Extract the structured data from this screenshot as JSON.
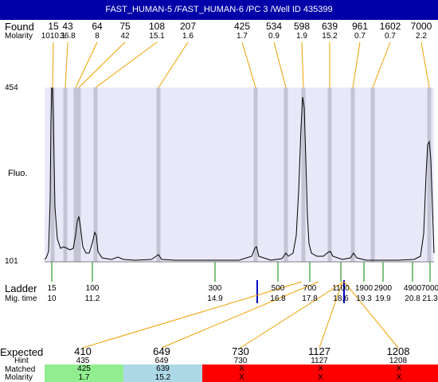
{
  "title": "FAST_HUMAN-5 /FAST_HUMAN-6 /PC 3 /Well ID 435399",
  "labels": {
    "found": "Found",
    "molarity": "Molarity",
    "fluo": "Fluo.",
    "ladder": "Ladder",
    "mig_time": "Mig. time",
    "expected": "Expected",
    "hint": "Hint",
    "matched": "Matched",
    "molarity_row": "Molarity"
  },
  "y_axis": {
    "max": "454",
    "min": "101"
  },
  "found_peaks": [
    {
      "size": "15",
      "molarity": "1010.1"
    },
    {
      "size": "43",
      "molarity": "36.8"
    },
    {
      "size": "64",
      "molarity": "8"
    },
    {
      "size": "75",
      "molarity": "42"
    },
    {
      "size": "108",
      "molarity": "15.1"
    },
    {
      "size": "207",
      "molarity": "1.6"
    },
    {
      "size": "425",
      "molarity": "1.7"
    },
    {
      "size": "534",
      "molarity": "0.9"
    },
    {
      "size": "598",
      "molarity": "1.9"
    },
    {
      "size": "639",
      "molarity": "15.2"
    },
    {
      "size": "961",
      "molarity": "0.7"
    },
    {
      "size": "1602",
      "molarity": "0.7"
    },
    {
      "size": "7000",
      "molarity": "2.2"
    }
  ],
  "ladder": [
    {
      "size": "15",
      "time": "10"
    },
    {
      "size": "100",
      "time": "11.2"
    },
    {
      "size": "300",
      "time": "14.9"
    },
    {
      "size": "500",
      "time": "16.8"
    },
    {
      "size": "700",
      "time": "17.8"
    },
    {
      "size": "1100",
      "time": "18.6"
    },
    {
      "size": "1900",
      "time": "19.3"
    },
    {
      "size": "2900",
      "time": "19.9"
    },
    {
      "size": "4900",
      "time": "20.8"
    },
    {
      "size": "7000",
      "time": "21.3"
    }
  ],
  "expected": [
    {
      "size": "410",
      "hint": "435",
      "matched": "425",
      "molarity": "1.7",
      "status": "matched-green"
    },
    {
      "size": "649",
      "hint": "649",
      "matched": "639",
      "molarity": "15.2",
      "status": "matched-blue"
    },
    {
      "size": "730",
      "hint": "730",
      "matched": "X",
      "molarity": "X",
      "status": "unmatched"
    },
    {
      "size": "1127",
      "hint": "1127",
      "matched": "X",
      "molarity": "X",
      "status": "unmatched"
    },
    {
      "size": "1208",
      "hint": "1208",
      "matched": "X",
      "molarity": "X",
      "status": "unmatched"
    }
  ],
  "colors": {
    "title_bg": "#0000a8",
    "plot_bg": "#e8e8f8",
    "band": "#c4c4d4",
    "found_line": "#f0a000",
    "ladder_line": "#008000",
    "marker": "#0000c0",
    "green": "#90ee90",
    "blue": "#add8e6",
    "red": "#ff0000",
    "trace": "#000000"
  }
}
